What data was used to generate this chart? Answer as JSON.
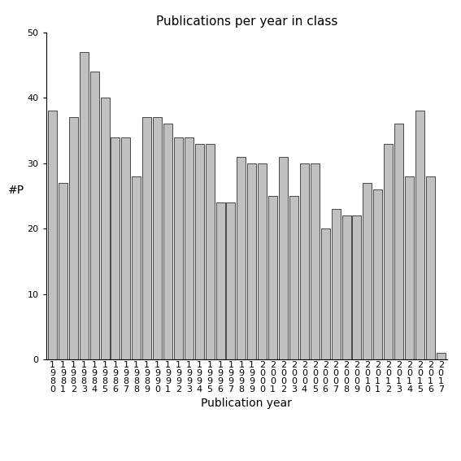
{
  "title": "Publications per year in class",
  "xlabel": "Publication year",
  "ylabel": "#P",
  "years": [
    1980,
    1981,
    1982,
    1983,
    1984,
    1985,
    1986,
    1987,
    1988,
    1989,
    1990,
    1991,
    1992,
    1993,
    1994,
    1995,
    1996,
    1997,
    1998,
    1999,
    2000,
    2001,
    2002,
    2003,
    2004,
    2005,
    2006,
    2007,
    2008,
    2009,
    2010,
    2011,
    2012,
    2013,
    2014,
    2015,
    2016,
    2017
  ],
  "values": [
    38,
    27,
    37,
    47,
    44,
    40,
    34,
    34,
    28,
    37,
    37,
    36,
    34,
    34,
    33,
    33,
    24,
    24,
    31,
    30,
    30,
    25,
    31,
    25,
    30,
    30,
    20,
    23,
    22,
    22,
    27,
    26,
    33,
    36,
    28,
    38,
    28,
    1
  ],
  "bar_color": "#c0c0c0",
  "bar_edgecolor": "#303030",
  "ylim": [
    0,
    50
  ],
  "yticks": [
    0,
    10,
    20,
    30,
    40,
    50
  ],
  "background_color": "#ffffff",
  "title_fontsize": 11,
  "axis_fontsize": 10,
  "tick_fontsize": 8
}
